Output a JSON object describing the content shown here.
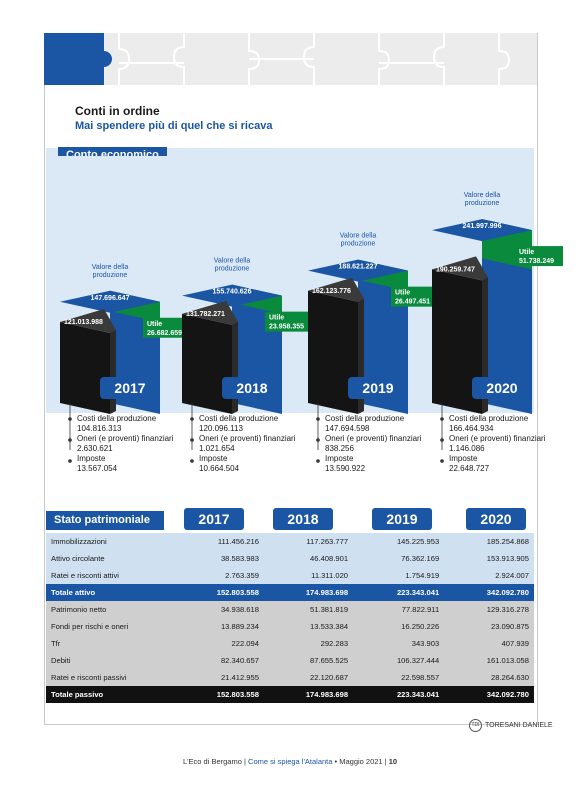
{
  "title": "Conti in ordine",
  "subtitle": "Mai spendere più di quel che si ricava",
  "conto_economico_label": "Conto economico",
  "stato_patrimoniale_label": "Stato patrimoniale",
  "valore_label": "Valore della produzione",
  "utile_label": "Utile",
  "cost_labels": {
    "costi": "Costi della produzione",
    "oneri": "Oneri (e proventi) finanziari",
    "imposte": "Imposte"
  },
  "colors": {
    "blue": "#1b56a5",
    "green": "#0a8a3c",
    "black": "#141414",
    "panel": "#dbe8f5"
  },
  "chart_data": {
    "type": "bar",
    "categories": [
      "2017",
      "2018",
      "2019",
      "2020"
    ],
    "series": [
      {
        "name": "Valore della produzione",
        "values": [
          "147.696.647",
          "155.740.626",
          "188.621.227",
          "241.997.996"
        ]
      },
      {
        "name": "Utile",
        "values": [
          "26.682.659",
          "23.958.355",
          "26.497.451",
          "51.738.249"
        ]
      }
    ],
    "bar_top_labels": [
      "121.013.988",
      "131.782.271",
      "162.123.776",
      "190.259.747"
    ],
    "costs": [
      {
        "costi": "104.816.313",
        "oneri": "2.630.621",
        "imposte": "13.567.054"
      },
      {
        "costi": "120.096.113",
        "oneri": "1.021.654",
        "imposte": "10.664.504"
      },
      {
        "costi": "147.694.598",
        "oneri": "838.256",
        "imposte": "13.590.922"
      },
      {
        "costi": "166.464.934",
        "oneri": "1.146.086",
        "imposte": "22.648.727"
      }
    ]
  },
  "stato_patrimoniale": {
    "years": [
      "2017",
      "2018",
      "2019",
      "2020"
    ],
    "rows": [
      {
        "label": "Immobilizzazioni",
        "kind": "att",
        "values": [
          "111.456.216",
          "117.263.777",
          "145.225.953",
          "185.254.868"
        ]
      },
      {
        "label": "Attivo circolante",
        "kind": "att",
        "values": [
          "38.583.983",
          "46.408.901",
          "76.362.169",
          "153.913.905"
        ]
      },
      {
        "label": "Ratei e risconti attivi",
        "kind": "att",
        "values": [
          "2.763.359",
          "11.311.020",
          "1.754.919",
          "2.924.007"
        ]
      },
      {
        "label": "Totale attivo",
        "kind": "tot-att",
        "values": [
          "152.803.558",
          "174.983.698",
          "223.343.041",
          "342.092.780"
        ]
      },
      {
        "label": "Patrimonio netto",
        "kind": "pas",
        "values": [
          "34.938.618",
          "51.381.819",
          "77.822.911",
          "129.316.278"
        ]
      },
      {
        "label": "Fondi per rischi e oneri",
        "kind": "pas",
        "values": [
          "13.889.234",
          "13.533.384",
          "16.250.226",
          "23.090.875"
        ]
      },
      {
        "label": "Tfr",
        "kind": "pas",
        "values": [
          "222.094",
          "292.283",
          "343.903",
          "407.939"
        ]
      },
      {
        "label": "Debiti",
        "kind": "pas",
        "values": [
          "82.340.657",
          "87.655.525",
          "106.327.444",
          "161.013.058"
        ]
      },
      {
        "label": "Ratei e risconti passivi",
        "kind": "pas",
        "values": [
          "21.412.955",
          "22.120.687",
          "22.598.557",
          "28.264.630"
        ]
      },
      {
        "label": "Totale passivo",
        "kind": "tot-pas",
        "values": [
          "152.803.558",
          "174.983.698",
          "223.343.041",
          "342.092.780"
        ]
      }
    ]
  },
  "credit": {
    "logo": "TDI",
    "text": "TORESANI DANIELE"
  },
  "footer": {
    "pre": "L'Eco di Bergamo | ",
    "mag": "Come si spiega l'Atalanta",
    "post": " • Maggio 2021 | ",
    "page": "10"
  }
}
